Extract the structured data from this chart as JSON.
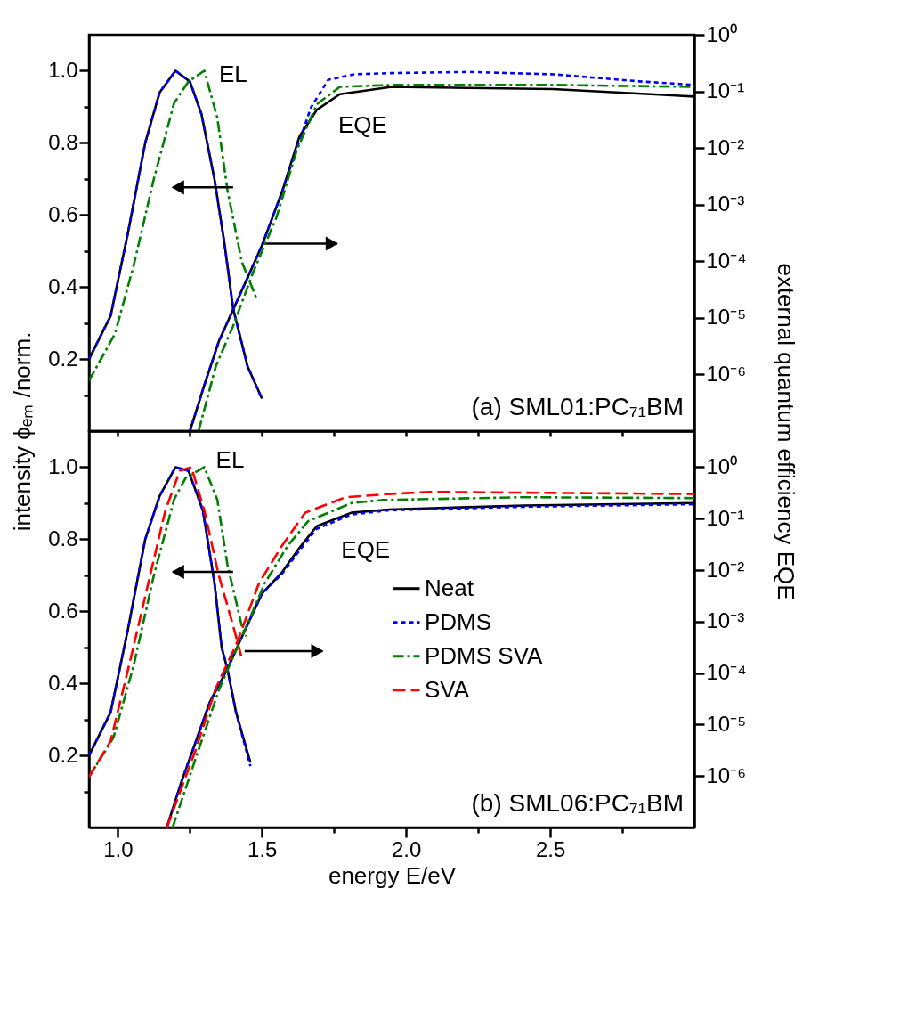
{
  "chart_data": [
    {
      "type": "line",
      "y2label": "external quantum efficiency EQE",
      "ylabel": "intensity ϕₑₘ /norm.",
      "xlim": [
        0.9,
        3.0
      ],
      "xticks": [
        {
          "value": 1,
          "label": null
        },
        {
          "value": 1.25,
          "label": null
        },
        {
          "value": 1.5,
          "label": null
        },
        {
          "value": 1.75,
          "label": null
        },
        {
          "value": 2,
          "label": null
        },
        {
          "value": 2.25,
          "label": null
        },
        {
          "value": 2.5,
          "label": null
        },
        {
          "value": 2.75,
          "label": null
        }
      ],
      "ylim": [
        0,
        1.1
      ],
      "yticks": [
        {
          "value": 0.1,
          "label": null
        },
        0.2,
        {
          "value": 0.3,
          "label": null
        },
        0.4,
        {
          "value": 0.5,
          "label": null
        },
        0.6,
        {
          "value": 0.7,
          "label": null
        },
        0.8,
        {
          "value": 0.9,
          "label": null
        },
        {
          "value": 1,
          "label": "1.0"
        }
      ],
      "y2lim": [
        1e-07,
        1
      ],
      "y2ticks": [
        {
          "value": 1,
          "label": "10⁰"
        },
        {
          "value": 0.1,
          "label": "10⁻¹"
        },
        {
          "value": 0.01,
          "label": "10⁻²"
        },
        {
          "value": 0.001,
          "label": "10⁻³"
        },
        {
          "value": 0.0001,
          "label": "10⁻⁴"
        },
        {
          "value": 1e-05,
          "label": "10⁻⁵"
        },
        {
          "value": 1e-06,
          "label": "10⁻⁶"
        }
      ],
      "log": "y2",
      "tick_labels": "y",
      "annotations": [
        "EL",
        "EQE",
        "(a) SML01:PC₇₁BM"
      ],
      "series": [
        {
          "color": "#000000",
          "line_style": "solid",
          "axis": "y",
          "x": [
            0.9,
            0.975,
            1.035,
            1.095,
            1.145,
            1.2,
            1.25,
            1.29,
            1.335,
            1.37,
            1.4,
            1.45,
            1.5
          ],
          "values": [
            0.2,
            0.32,
            0.55,
            0.8,
            0.94,
            1.0,
            0.97,
            0.88,
            0.7,
            0.52,
            0.34,
            0.18,
            0.09
          ]
        },
        {
          "color": "#0000ff",
          "line_style": "dotted",
          "axis": "y",
          "x": [
            0.9,
            0.975,
            1.035,
            1.095,
            1.145,
            1.2,
            1.25,
            1.29,
            1.335,
            1.37,
            1.4,
            1.45,
            1.5
          ],
          "values": [
            0.2,
            0.32,
            0.55,
            0.8,
            0.94,
            1.0,
            0.97,
            0.88,
            0.7,
            0.52,
            0.34,
            0.18,
            0.09
          ]
        },
        {
          "color": "#008000",
          "line_style": "dashdot",
          "axis": "y",
          "x": [
            0.9,
            0.99,
            1.055,
            1.125,
            1.195,
            1.245,
            1.3,
            1.345,
            1.38,
            1.43,
            1.48
          ],
          "values": [
            0.14,
            0.27,
            0.46,
            0.7,
            0.91,
            0.97,
            1.0,
            0.87,
            0.67,
            0.47,
            0.37
          ]
        },
        {
          "color": "#000000",
          "line_style": "solid",
          "axis": "y2",
          "x": [
            1.25,
            1.3,
            1.35,
            1.4,
            1.45,
            1.5,
            1.57,
            1.63,
            1.69,
            1.77,
            1.95,
            2.51,
            3.0
          ],
          "values": [
            1e-07,
            6.5e-07,
            3.8e-06,
            1.4e-05,
            5.1e-05,
            0.00019,
            0.0017,
            0.016,
            0.047,
            0.089,
            0.12,
            0.11,
            0.081
          ]
        },
        {
          "color": "#0000ff",
          "line_style": "dotted",
          "axis": "y2",
          "x": [
            1.25,
            1.3,
            1.35,
            1.4,
            1.45,
            1.5,
            1.57,
            1.67,
            1.73,
            1.82,
            1.95,
            2.22,
            2.51,
            2.81,
            3.0
          ],
          "values": [
            1e-07,
            6.5e-07,
            3.8e-06,
            1.4e-05,
            5.1e-05,
            0.00019,
            0.0017,
            0.052,
            0.16,
            0.2,
            0.21,
            0.22,
            0.2,
            0.15,
            0.13
          ]
        },
        {
          "color": "#008000",
          "line_style": "dashdot",
          "axis": "y2",
          "x": [
            1.28,
            1.34,
            1.4,
            1.47,
            1.55,
            1.62,
            1.69,
            1.77,
            1.95,
            2.22,
            2.51,
            3.0
          ],
          "values": [
            1e-07,
            1.4e-06,
            7.2e-06,
            6.5e-05,
            0.00059,
            0.0089,
            0.059,
            0.12,
            0.13,
            0.13,
            0.13,
            0.12
          ]
        }
      ]
    },
    {
      "type": "line",
      "xlabel": "energy E/eV",
      "xlim": [
        0.9,
        3.0
      ],
      "xticks": [
        {
          "value": 1,
          "label": "1.0"
        },
        {
          "value": 1.25,
          "label": null
        },
        1.5,
        {
          "value": 1.75,
          "label": null
        },
        {
          "value": 2,
          "label": "2.0"
        },
        {
          "value": 2.25,
          "label": null
        },
        2.5,
        {
          "value": 2.75,
          "label": null
        }
      ],
      "ylim": [
        0,
        1.1
      ],
      "yticks": [
        {
          "value": 0.1,
          "label": null
        },
        0.2,
        {
          "value": 0.3,
          "label": null
        },
        0.4,
        {
          "value": 0.5,
          "label": null
        },
        0.6,
        {
          "value": 0.7,
          "label": null
        },
        0.8,
        {
          "value": 0.9,
          "label": null
        },
        {
          "value": 1,
          "label": "1.0"
        }
      ],
      "y2lim": [
        1e-07,
        5
      ],
      "y2ticks": [
        {
          "value": 1,
          "label": "10⁰"
        },
        {
          "value": 0.1,
          "label": "10⁻¹"
        },
        {
          "value": 0.01,
          "label": "10⁻²"
        },
        {
          "value": 0.001,
          "label": "10⁻³"
        },
        {
          "value": 0.0001,
          "label": "10⁻⁴"
        },
        {
          "value": 1e-05,
          "label": "10⁻⁵"
        },
        {
          "value": 1e-06,
          "label": "10⁻⁶"
        }
      ],
      "log": "y2",
      "legend": "right",
      "annotations": [
        "EL",
        "EQE",
        "(b) SML06:PC₇₁BM"
      ],
      "series": [
        {
          "name": "Neat",
          "color": "#000000",
          "line_style": "solid",
          "axis": "y",
          "x": [
            0.9,
            0.975,
            1.035,
            1.095,
            1.145,
            1.2,
            1.245,
            1.295,
            1.335,
            1.36,
            1.38,
            1.41,
            1.46
          ],
          "values": [
            0.2,
            0.32,
            0.55,
            0.8,
            0.92,
            1.0,
            0.99,
            0.88,
            0.68,
            0.5,
            0.44,
            0.32,
            0.18
          ]
        },
        {
          "name": "PDMS",
          "color": "#0000ff",
          "line_style": "dotted",
          "axis": "y",
          "x": [
            0.9,
            0.975,
            1.035,
            1.095,
            1.145,
            1.2,
            1.245,
            1.295,
            1.335,
            1.36,
            1.38,
            1.41,
            1.46
          ],
          "values": [
            0.2,
            0.32,
            0.55,
            0.8,
            0.92,
            1.0,
            0.99,
            0.88,
            0.68,
            0.5,
            0.44,
            0.32,
            0.17
          ]
        },
        {
          "name": "PDMS SVA",
          "color": "#008000",
          "line_style": "dashdot",
          "axis": "y",
          "x": [
            0.9,
            0.985,
            1.055,
            1.125,
            1.195,
            1.235,
            1.3,
            1.345,
            1.38,
            1.43,
            1.445
          ],
          "values": [
            0.14,
            0.25,
            0.45,
            0.7,
            0.91,
            0.97,
            1.0,
            0.91,
            0.73,
            0.56,
            0.53
          ]
        },
        {
          "name": "SVA",
          "color": "#ff0000",
          "line_style": "dashed",
          "axis": "y",
          "x": [
            0.9,
            0.975,
            1.045,
            1.115,
            1.165,
            1.215,
            1.255,
            1.3,
            1.35,
            1.4,
            1.43
          ],
          "values": [
            0.14,
            0.24,
            0.47,
            0.71,
            0.88,
            0.99,
            1.0,
            0.88,
            0.7,
            0.56,
            0.47
          ]
        },
        {
          "color": "#000000",
          "line_style": "solid",
          "axis": "y2",
          "x": [
            1.17,
            1.22,
            1.27,
            1.32,
            1.38,
            1.43,
            1.5,
            1.57,
            1.63,
            1.69,
            1.81,
            1.94,
            2.41,
            3.0
          ],
          "values": [
            1e-07,
            7.6e-07,
            4.6e-06,
            2.8e-05,
            0.00012,
            0.0005,
            0.0035,
            0.0091,
            0.027,
            0.071,
            0.13,
            0.15,
            0.18,
            0.2
          ]
        },
        {
          "color": "#0000ff",
          "line_style": "dotted",
          "axis": "y2",
          "x": [
            1.17,
            1.22,
            1.27,
            1.32,
            1.38,
            1.43,
            1.5,
            1.57,
            1.63,
            1.69,
            1.81,
            1.94,
            2.41,
            3.0
          ],
          "values": [
            1e-07,
            7.6e-07,
            4.6e-06,
            2.8e-05,
            0.00012,
            0.0005,
            0.0035,
            0.0085,
            0.024,
            0.063,
            0.12,
            0.145,
            0.17,
            0.19
          ]
        },
        {
          "color": "#008000",
          "line_style": "dashdot",
          "axis": "y2",
          "x": [
            1.19,
            1.27,
            1.35,
            1.43,
            1.51,
            1.59,
            1.66,
            1.81,
            1.92,
            2.41,
            3.0
          ],
          "values": [
            1e-07,
            2.2e-06,
            4.6e-05,
            0.0005,
            0.0056,
            0.03,
            0.089,
            0.2,
            0.23,
            0.26,
            0.25
          ]
        },
        {
          "color": "#ff0000",
          "line_style": "dashed",
          "axis": "y2",
          "x": [
            1.17,
            1.27,
            1.34,
            1.41,
            1.49,
            1.57,
            1.65,
            1.79,
            1.94,
            2.08,
            3.0
          ],
          "values": [
            1e-07,
            3.2e-06,
            5.1e-05,
            0.00035,
            0.0056,
            0.03,
            0.13,
            0.26,
            0.3,
            0.33,
            0.3
          ]
        }
      ]
    }
  ]
}
